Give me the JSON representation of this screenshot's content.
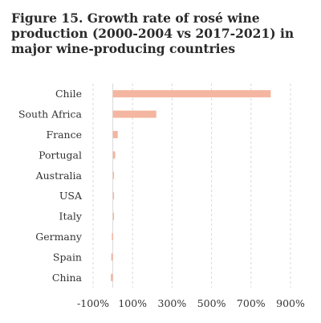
{
  "chart_data": {
    "type": "bar",
    "orientation": "horizontal",
    "title": "Figure 15. Growth rate of rosé wine production (2000-2004 vs 2017-2021) in major wine-producing countries",
    "categories": [
      "Chile",
      "South Africa",
      "France",
      "Portugal",
      "Australia",
      "USA",
      "Italy",
      "Germany",
      "Spain",
      "China"
    ],
    "values": [
      800,
      220,
      25,
      12,
      5,
      2,
      0,
      -5,
      -8,
      -10
    ],
    "xlim": [
      -100,
      900
    ],
    "xticks": [
      -100,
      100,
      300,
      500,
      700,
      900
    ],
    "xtick_labels": [
      "-100%",
      "100%",
      "300%",
      "500%",
      "700%",
      "900%"
    ],
    "grid": true,
    "legend": "none",
    "bar_color": "#f4b6a0"
  }
}
